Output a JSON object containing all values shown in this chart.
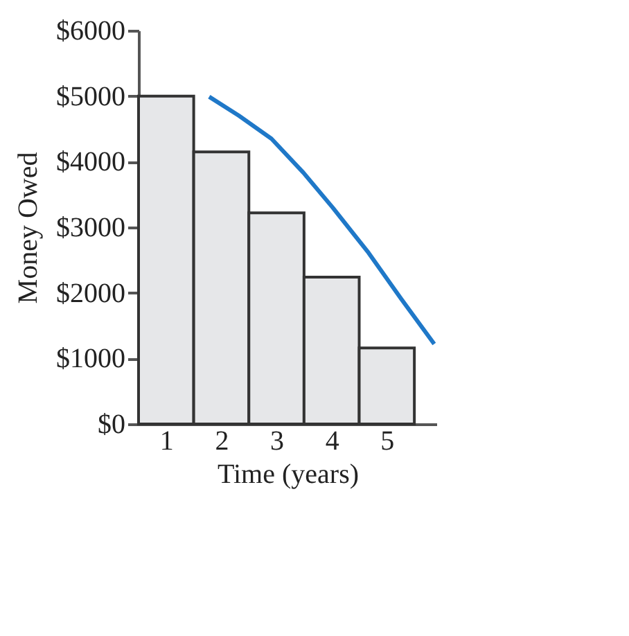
{
  "chart_data": {
    "type": "bar",
    "xlabel": "Time (years)",
    "ylabel": "Money Owed",
    "x": [
      1,
      2,
      3,
      4,
      5
    ],
    "series": [
      {
        "color": "#e6e7e9",
        "values": [
          5000,
          4150,
          3220,
          2240,
          1160
        ]
      },
      {
        "type": "line",
        "color": "#1f78c8",
        "x": [
          1.78,
          2.32,
          2.91,
          3.49,
          4.02,
          4.67,
          5.26,
          5.86
        ],
        "values": [
          4990,
          4700,
          4350,
          3830,
          3300,
          2610,
          1910,
          1220
        ]
      }
    ],
    "xlim": [
      0.5,
      5.9
    ],
    "xticks": [
      1,
      2,
      3,
      4,
      5
    ],
    "ylim": [
      0,
      6000
    ],
    "yticks": [
      {
        "value": 0,
        "label": "$0"
      },
      {
        "value": 1000,
        "label": "$1000"
      },
      {
        "value": 2000,
        "label": "$2000"
      },
      {
        "value": 3000,
        "label": "$3000"
      },
      {
        "value": 4000,
        "label": "$4000"
      },
      {
        "value": 5000,
        "label": "$5000"
      },
      {
        "value": 6000,
        "label": "$6000"
      }
    ],
    "grid": false,
    "marker": "none",
    "line_style": "solid"
  }
}
